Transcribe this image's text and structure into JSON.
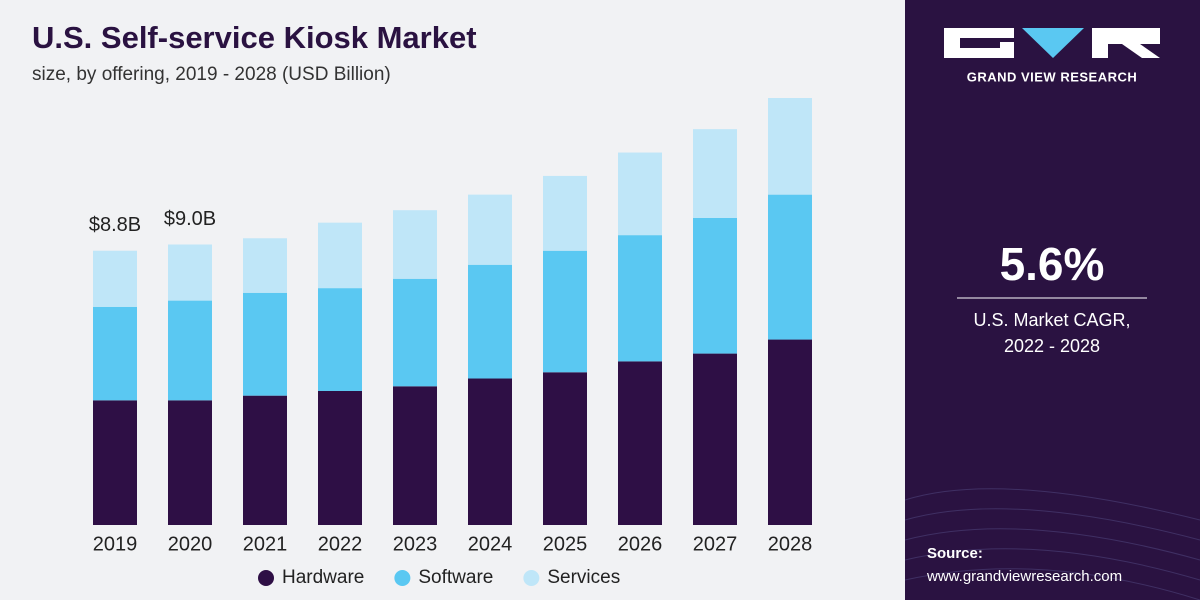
{
  "chart_data": {
    "type": "bar",
    "stacked": true,
    "title": "U.S. Self-service Kiosk Market",
    "subtitle": "size, by offering, 2019 - 2028 (USD Billion)",
    "categories": [
      "2019",
      "2020",
      "2021",
      "2022",
      "2023",
      "2024",
      "2025",
      "2026",
      "2027",
      "2028"
    ],
    "series": [
      {
        "name": "Hardware",
        "color": "#2e0f45",
        "values": [
          4.0,
          4.0,
          4.15,
          4.3,
          4.45,
          4.7,
          4.9,
          5.25,
          5.5,
          5.95
        ]
      },
      {
        "name": "Software",
        "color": "#5ac8f2",
        "values": [
          3.0,
          3.2,
          3.3,
          3.3,
          3.45,
          3.65,
          3.9,
          4.05,
          4.35,
          4.65
        ]
      },
      {
        "name": "Services",
        "color": "#bfe6f8",
        "values": [
          1.8,
          1.8,
          1.75,
          2.1,
          2.2,
          2.25,
          2.4,
          2.65,
          2.85,
          3.1
        ]
      }
    ],
    "annotations": [
      {
        "category": "2019",
        "value": 8.8,
        "label": "$8.8B"
      },
      {
        "category": "2020",
        "value": 9.0,
        "label": "$9.0B"
      }
    ],
    "legend": "bottom"
  },
  "sidebar": {
    "brand": "GRAND VIEW RESEARCH",
    "cagr": "5.6%",
    "cagr_caption": [
      "U.S. Market CAGR,",
      "2022 - 2028"
    ],
    "source_label": "Source:",
    "source_url": "www.grandviewresearch.com"
  }
}
